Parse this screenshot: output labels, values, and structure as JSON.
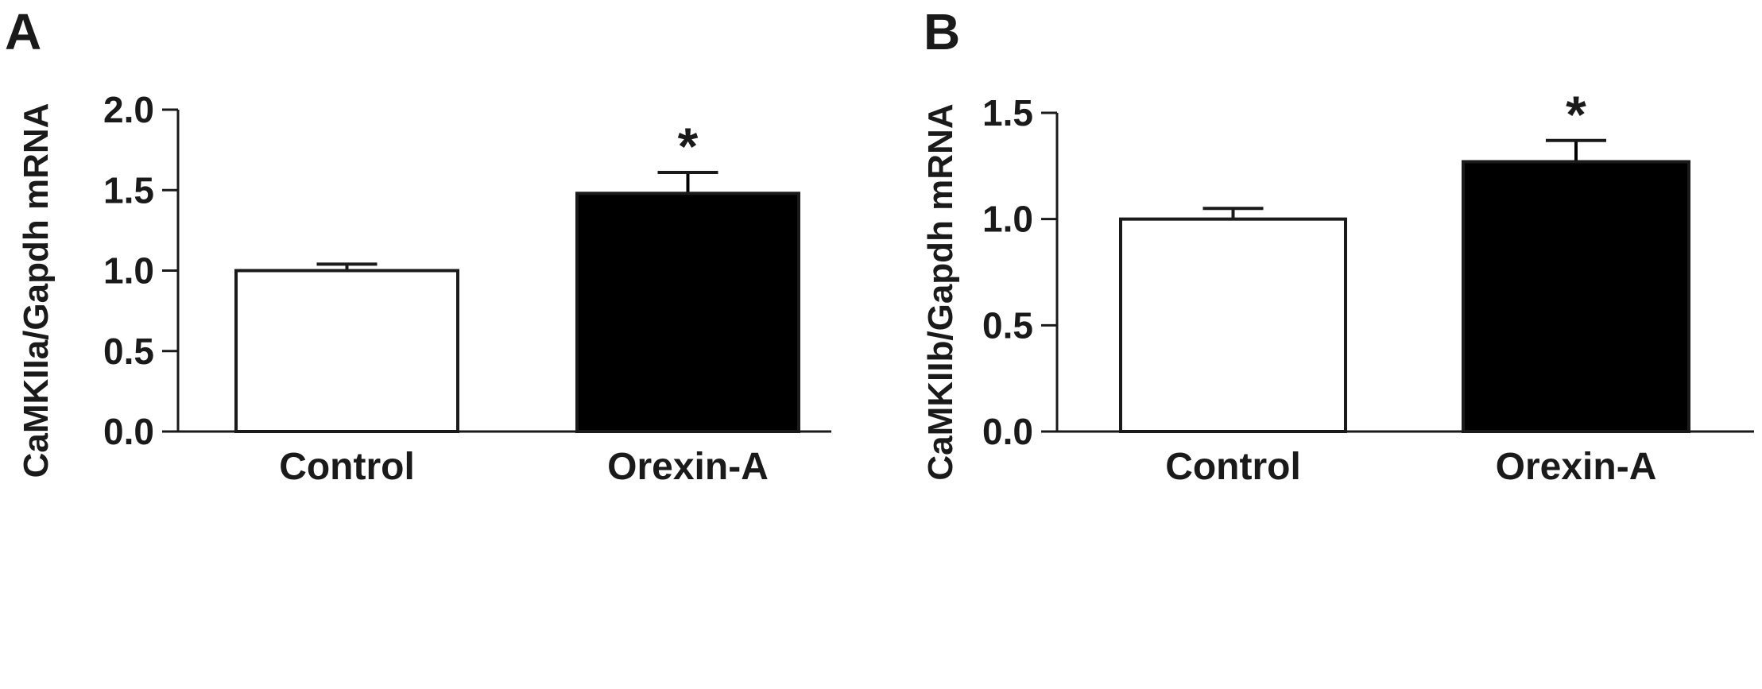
{
  "chart_data": [
    {
      "panel": "A",
      "type": "bar",
      "categories": [
        "Control",
        "Orexin-A"
      ],
      "values": [
        1.0,
        1.48
      ],
      "errors": [
        0.04,
        0.13
      ],
      "bar_colors": [
        "#ffffff",
        "#000000"
      ],
      "significance": [
        "",
        "*"
      ],
      "ylabel": "CaMKIIa/Gapdh mRNA",
      "xlabel": "",
      "ylim": [
        0,
        2.0
      ],
      "yticks": [
        0.0,
        0.5,
        1.0,
        1.5,
        2.0
      ],
      "ytick_labels": [
        "0.0",
        "0.5",
        "1.0",
        "1.5",
        "2.0"
      ],
      "grid": false
    },
    {
      "panel": "B",
      "type": "bar",
      "categories": [
        "Control",
        "Orexin-A"
      ],
      "values": [
        1.0,
        1.27
      ],
      "errors": [
        0.05,
        0.1
      ],
      "bar_colors": [
        "#ffffff",
        "#000000"
      ],
      "significance": [
        "",
        "*"
      ],
      "ylabel": "CaMKIIb/Gapdh mRNA",
      "xlabel": "",
      "ylim": [
        0,
        1.5
      ],
      "yticks": [
        0.0,
        0.5,
        1.0,
        1.5
      ],
      "ytick_labels": [
        "0.0",
        "0.5",
        "1.0",
        "1.5"
      ],
      "grid": false
    }
  ]
}
